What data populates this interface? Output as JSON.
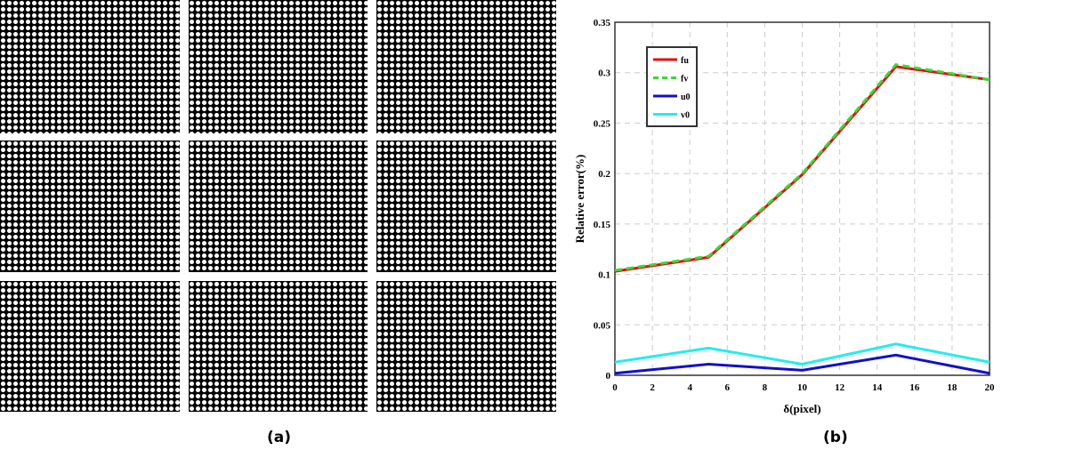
{
  "labels": {
    "a": "(a)",
    "b": "(b)"
  },
  "chart_data": {
    "type": "line",
    "title": "",
    "xlabel": "δ(pixel)",
    "ylabel": "Relative error(%)",
    "xlim": [
      0,
      20
    ],
    "ylim": [
      0,
      0.35
    ],
    "xticks": [
      "0",
      "2",
      "4",
      "6",
      "8",
      "10",
      "12",
      "14",
      "16",
      "18",
      "20"
    ],
    "yticks": [
      "0",
      "0.05",
      "0.1",
      "0.15",
      "0.2",
      "0.25",
      "0.3",
      "0.35"
    ],
    "grid": true,
    "legend_position": "top-left",
    "x": [
      0,
      5,
      10,
      15,
      20
    ],
    "series": [
      {
        "name": "fu",
        "color": "#e01010",
        "dashed": false,
        "values": [
          0.103,
          0.117,
          0.199,
          0.306,
          0.293
        ]
      },
      {
        "name": "fv",
        "color": "#33dd33",
        "dashed": true,
        "values": [
          0.104,
          0.118,
          0.2,
          0.308,
          0.293
        ]
      },
      {
        "name": "u0",
        "color": "#1010cc",
        "dashed": false,
        "values": [
          0.002,
          0.011,
          0.005,
          0.02,
          0.002
        ]
      },
      {
        "name": "v0",
        "color": "#22eeee",
        "dashed": false,
        "values": [
          0.013,
          0.027,
          0.011,
          0.031,
          0.013
        ]
      }
    ]
  }
}
